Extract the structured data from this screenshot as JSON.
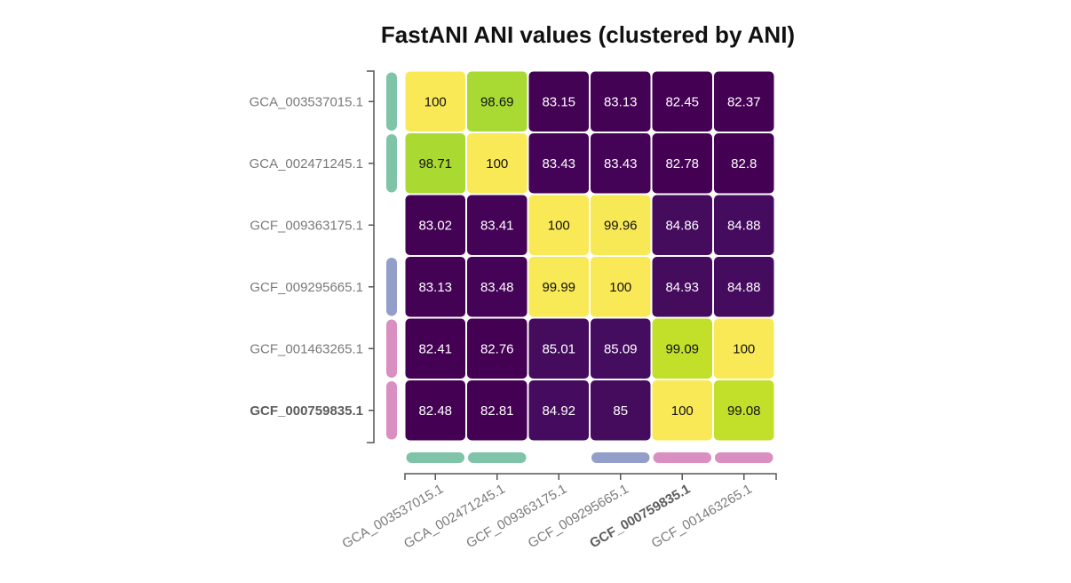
{
  "chart_data": {
    "type": "heatmap",
    "title": "FastANI ANI values (clustered by ANI)",
    "rows": [
      "GCA_003537015.1",
      "GCA_002471245.1",
      "GCF_009363175.1",
      "GCF_009295665.1",
      "GCF_001463265.1",
      "GCF_000759835.1"
    ],
    "columns": [
      "GCA_003537015.1",
      "GCA_002471245.1",
      "GCF_009363175.1",
      "GCF_009295665.1",
      "GCF_000759835.1",
      "GCF_001463265.1"
    ],
    "values": [
      [
        100,
        98.69,
        83.15,
        83.13,
        82.45,
        82.37
      ],
      [
        98.71,
        100,
        83.43,
        83.43,
        82.78,
        82.8
      ],
      [
        83.02,
        83.41,
        100,
        99.96,
        84.86,
        84.88
      ],
      [
        83.13,
        83.48,
        99.99,
        100,
        84.93,
        84.88
      ],
      [
        82.41,
        82.76,
        85.01,
        85.09,
        99.09,
        100
      ],
      [
        82.48,
        82.81,
        84.92,
        85,
        100,
        99.08
      ]
    ],
    "bold_label": "GCF_000759835.1",
    "colormap": "viridis",
    "color_range": [
      82.37,
      100
    ],
    "row_groups": [
      "#7fc4a8",
      "#7fc4a8",
      null,
      "#939fc9",
      "#d98fc1",
      "#d98fc1"
    ],
    "column_groups": [
      "#7fc4a8",
      "#7fc4a8",
      null,
      "#939fc9",
      "#d98fc1",
      "#d98fc1"
    ],
    "grid": false,
    "legend": "none"
  }
}
